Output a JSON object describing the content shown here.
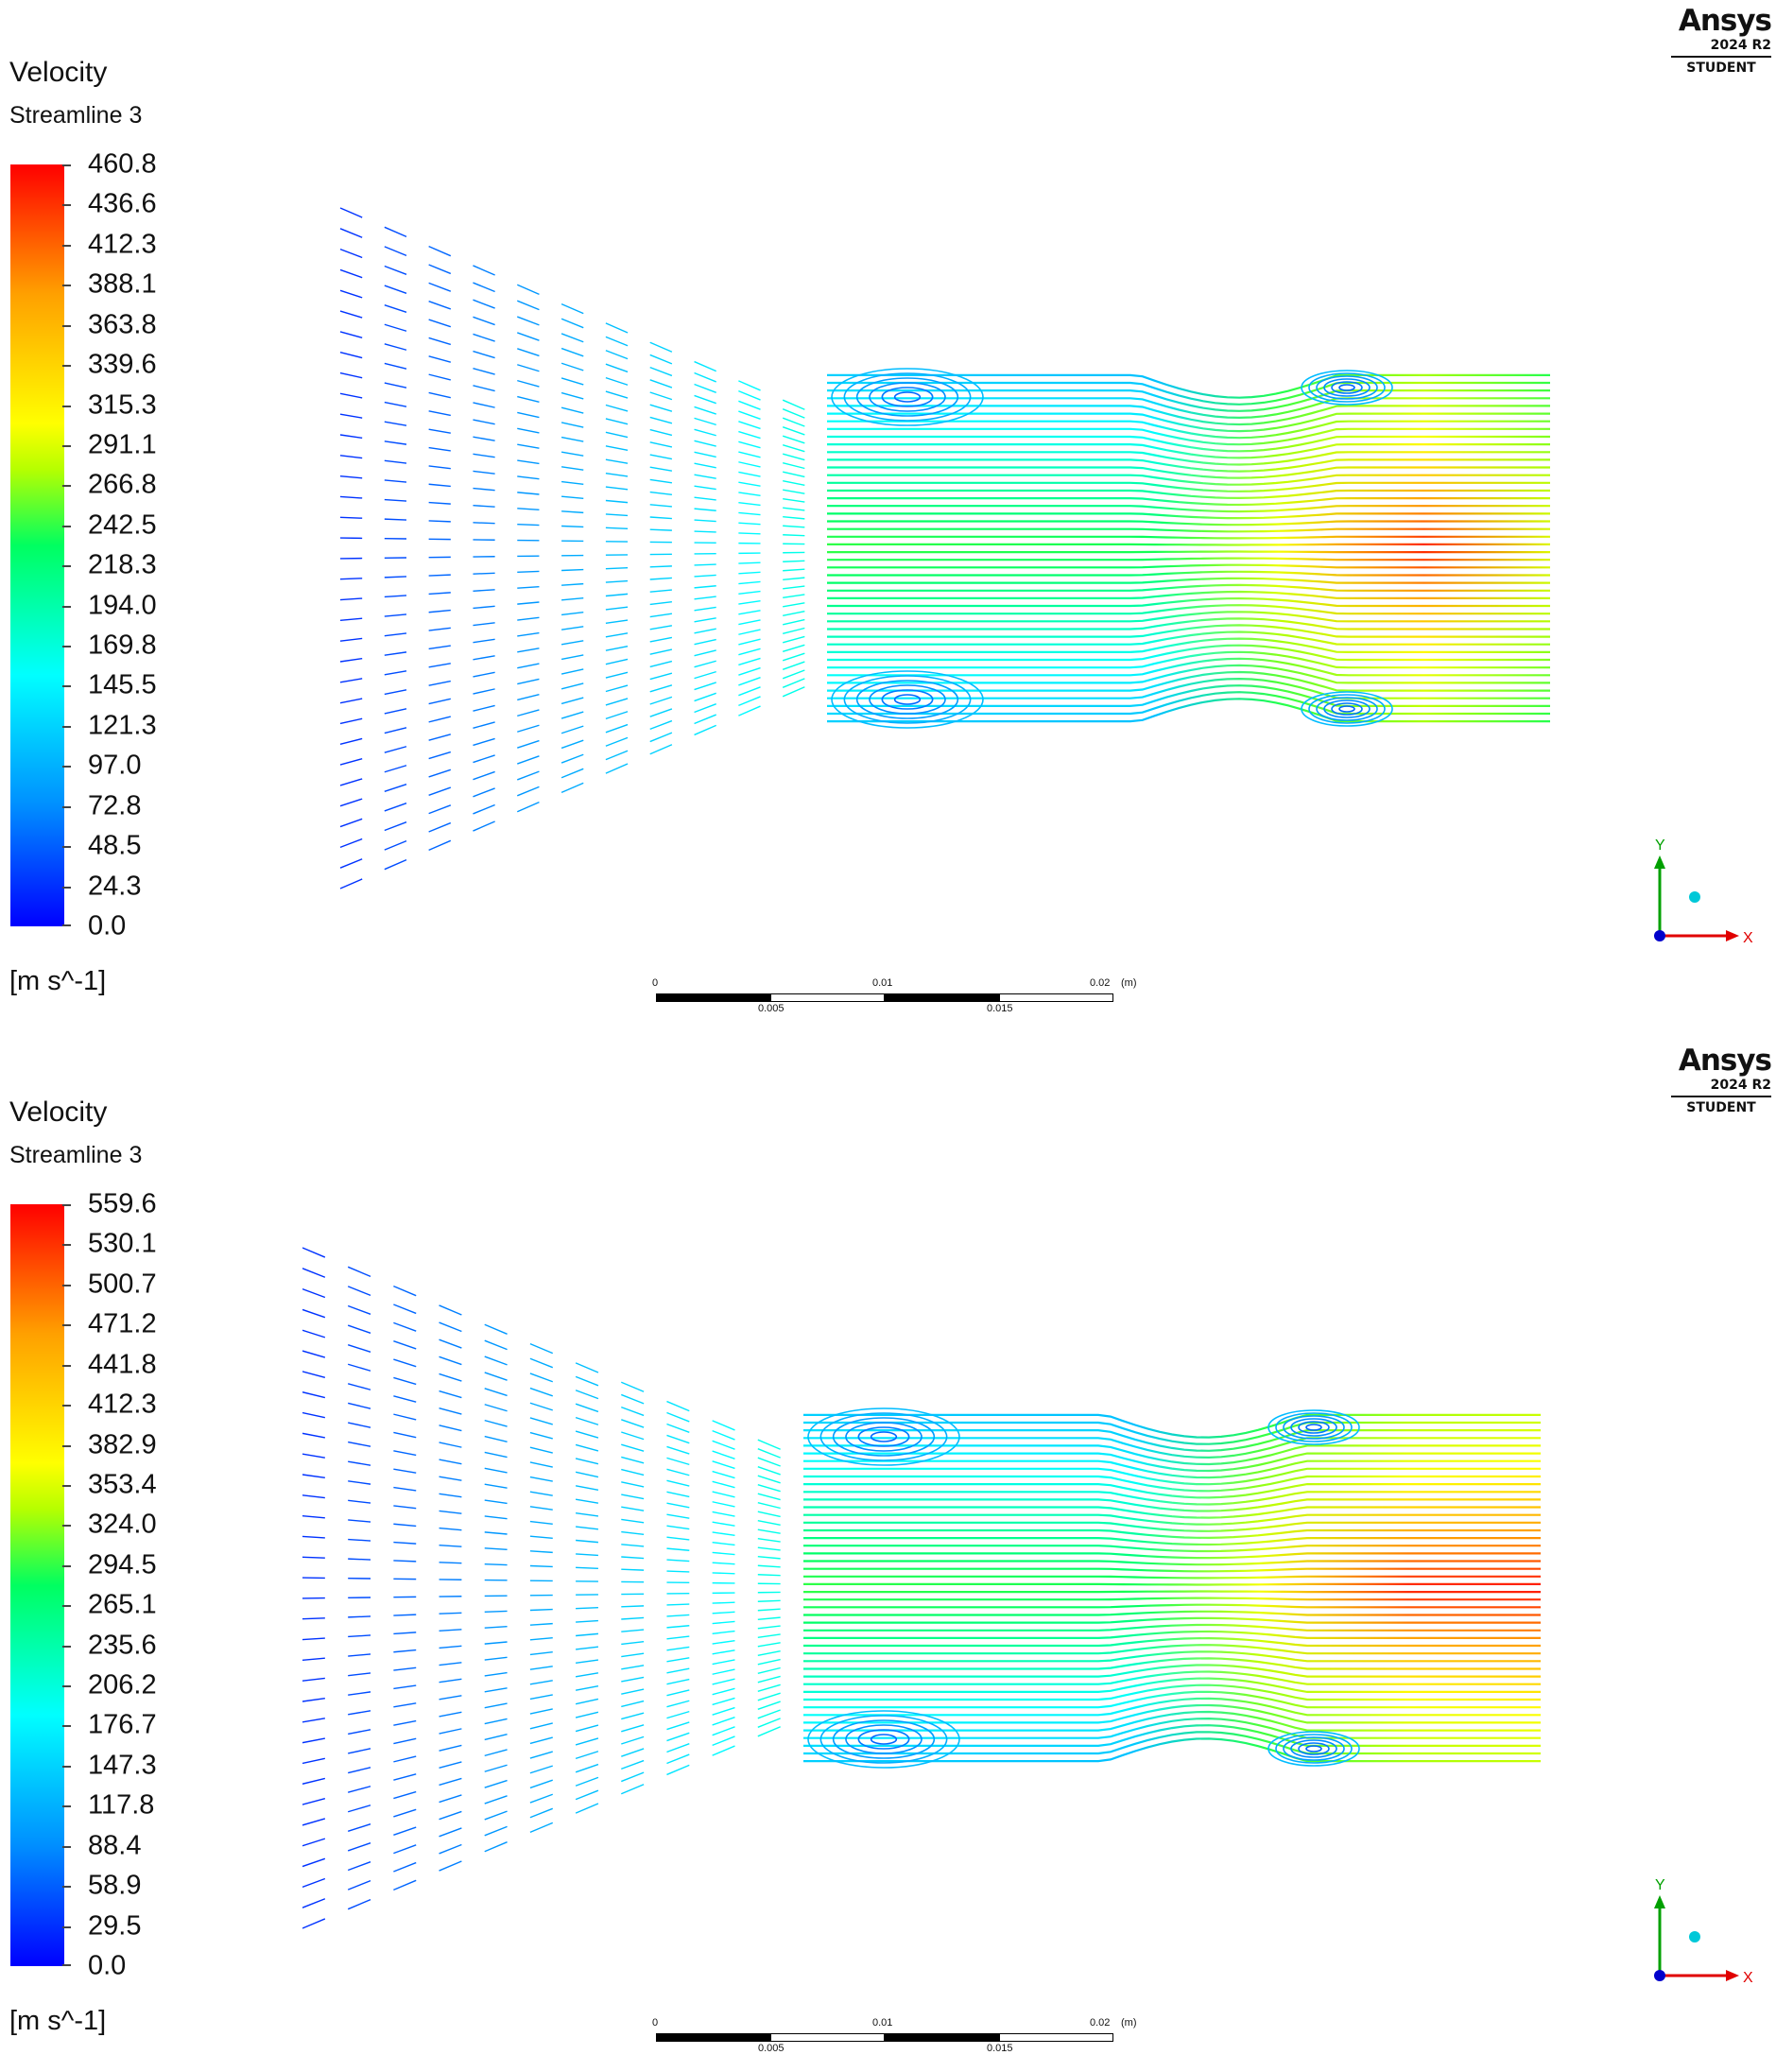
{
  "panels": [
    {
      "title": "Velocity",
      "subtitle": "Streamline 3",
      "legend": [
        "460.8",
        "436.6",
        "412.3",
        "388.1",
        "363.8",
        "339.6",
        "315.3",
        "291.1",
        "266.8",
        "242.5",
        "218.3",
        "194.0",
        "169.8",
        "145.5",
        "121.3",
        "97.0",
        "72.8",
        "48.5",
        "24.3",
        "0.0"
      ],
      "units": "[m s^-1]",
      "logo": {
        "name": "Ansys",
        "version": "2024 R2",
        "edition": "STUDENT"
      },
      "scale": {
        "top": [
          "0",
          "0.01",
          "0.02"
        ],
        "unit": "(m)",
        "bottom": [
          "0.005",
          "0.015"
        ]
      },
      "axes": {
        "y": "Y",
        "x": "X"
      }
    },
    {
      "title": "Velocity",
      "subtitle": "Streamline 3",
      "legend": [
        "559.6",
        "530.1",
        "500.7",
        "471.2",
        "441.8",
        "412.3",
        "382.9",
        "353.4",
        "324.0",
        "294.5",
        "265.1",
        "235.6",
        "206.2",
        "176.7",
        "147.3",
        "117.8",
        "88.4",
        "58.9",
        "29.5",
        "0.0"
      ],
      "units": "[m s^-1]",
      "logo": {
        "name": "Ansys",
        "version": "2024 R2",
        "edition": "STUDENT"
      },
      "scale": {
        "top": [
          "0",
          "0.01",
          "0.02"
        ],
        "unit": "(m)",
        "bottom": [
          "0.005",
          "0.015"
        ]
      },
      "axes": {
        "y": "Y",
        "x": "X"
      }
    }
  ],
  "colormap": [
    "#0000ff",
    "#0090ff",
    "#00ffff",
    "#00ff60",
    "#b6ff00",
    "#ffff00",
    "#ffa000",
    "#ff0000"
  ]
}
